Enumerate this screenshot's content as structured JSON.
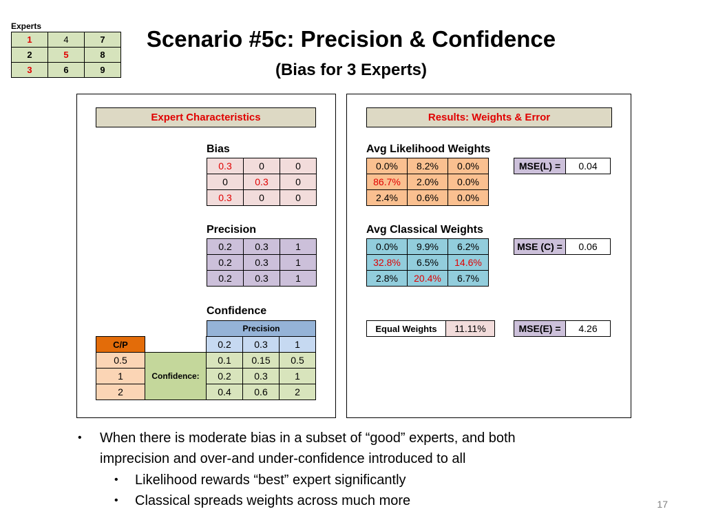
{
  "experts": {
    "label": "Experts",
    "rows": [
      [
        "1",
        "4",
        "7"
      ],
      [
        "2",
        "5",
        "8"
      ],
      [
        "3",
        "6",
        "9"
      ]
    ]
  },
  "title": "Scenario #5c: Precision & Confidence",
  "subtitle": "(Bias for 3 Experts)",
  "left_panel": {
    "header": "Expert Characteristics",
    "bias": {
      "label": "Bias",
      "rows": [
        [
          "0.3",
          "0",
          "0"
        ],
        [
          "0",
          "0.3",
          "0"
        ],
        [
          "0.3",
          "0",
          "0"
        ]
      ]
    },
    "precision": {
      "label": "Precision",
      "rows": [
        [
          "0.2",
          "0.3",
          "1"
        ],
        [
          "0.2",
          "0.3",
          "1"
        ],
        [
          "0.2",
          "0.3",
          "1"
        ]
      ]
    },
    "confidence": {
      "label": "Confidence",
      "precision_header": "Precision",
      "cp_header": "C/P",
      "precision_values": [
        "0.2",
        "0.3",
        "1"
      ],
      "row_label": "Confidence:",
      "cp_values": [
        "0.5",
        "1",
        "2"
      ],
      "rows": [
        [
          "0.1",
          "0.15",
          "0.5"
        ],
        [
          "0.2",
          "0.3",
          "1"
        ],
        [
          "0.4",
          "0.6",
          "2"
        ]
      ]
    }
  },
  "right_panel": {
    "header": "Results: Weights & Error",
    "likelihood": {
      "label": "Avg Likelihood Weights",
      "rows": [
        [
          "0.0%",
          "8.2%",
          "0.0%"
        ],
        [
          "86.7%",
          "2.0%",
          "0.0%"
        ],
        [
          "2.4%",
          "0.6%",
          "0.0%"
        ]
      ],
      "mse_label": "MSE(L) =",
      "mse_value": "0.04"
    },
    "classical": {
      "label": "Avg Classical Weights",
      "rows": [
        [
          "0.0%",
          "9.9%",
          "6.2%"
        ],
        [
          "32.8%",
          "6.5%",
          "14.6%"
        ],
        [
          "2.8%",
          "20.4%",
          "6.7%"
        ]
      ],
      "mse_label": "MSE (C) =",
      "mse_value": "0.06"
    },
    "equal": {
      "label": "Equal Weights",
      "value": "11.11%",
      "mse_label": "MSE(E) =",
      "mse_value": "4.26"
    }
  },
  "bullets": {
    "main_line1": "When there is moderate bias in a subset of “good” experts, and both",
    "main_line2": "imprecision and over-and under-confidence introduced to all",
    "sub1": "Likelihood rewards “best” expert significantly",
    "sub2": "Classical spreads weights across much more"
  },
  "page_number": "17",
  "colors": {
    "red_text": "#e00000",
    "header_bg": "#ddd9c4",
    "likelihood_bg": "#fac090",
    "classical_bg": "#92cddc"
  }
}
